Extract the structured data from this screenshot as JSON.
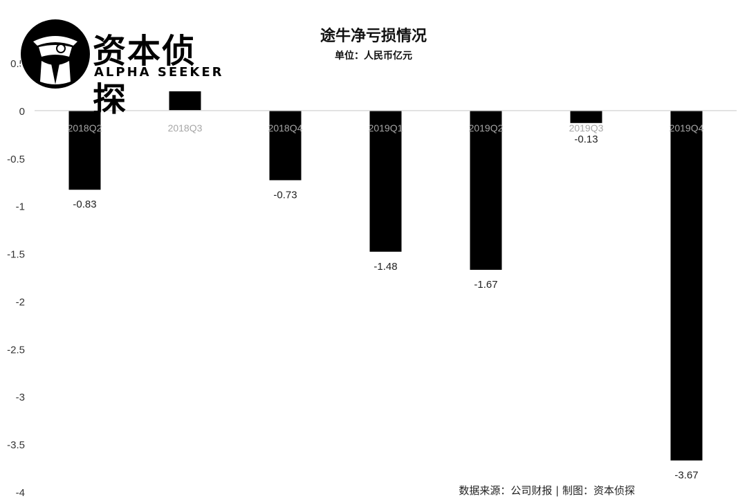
{
  "header": {
    "title": "途牛净亏损情况",
    "subtitle": "单位：人民币亿元"
  },
  "logo": {
    "name_cn": "资本侦探",
    "name_en": "ALPHA SEEKER"
  },
  "footer": {
    "source": "数据来源：公司财报 | 制图：资本侦探"
  },
  "chart_data": {
    "type": "bar",
    "categories": [
      "2018Q2",
      "2018Q3",
      "2018Q4",
      "2019Q1",
      "2019Q2",
      "2019Q3",
      "2019Q4"
    ],
    "values": [
      -0.83,
      0.23,
      -0.73,
      -1.48,
      -1.67,
      -0.13,
      -3.67
    ],
    "data_labels": [
      "-0.83",
      "",
      "-0.73",
      "-1.48",
      "-1.67",
      "-0.13",
      "-3.67"
    ],
    "ylim": [
      -4,
      0.5
    ],
    "yticks": [
      "0.5",
      "0",
      "-0.5",
      "-1",
      "-1.5",
      "-2",
      "-2.5",
      "-3",
      "-3.5",
      "-4"
    ],
    "title": "途牛净亏损情况",
    "xlabel": "",
    "ylabel": "",
    "bar_color": "#000000",
    "axis_color": "#d9d9d9",
    "category_label_color": "#a6a6a6",
    "grid": false,
    "legend": "none"
  }
}
